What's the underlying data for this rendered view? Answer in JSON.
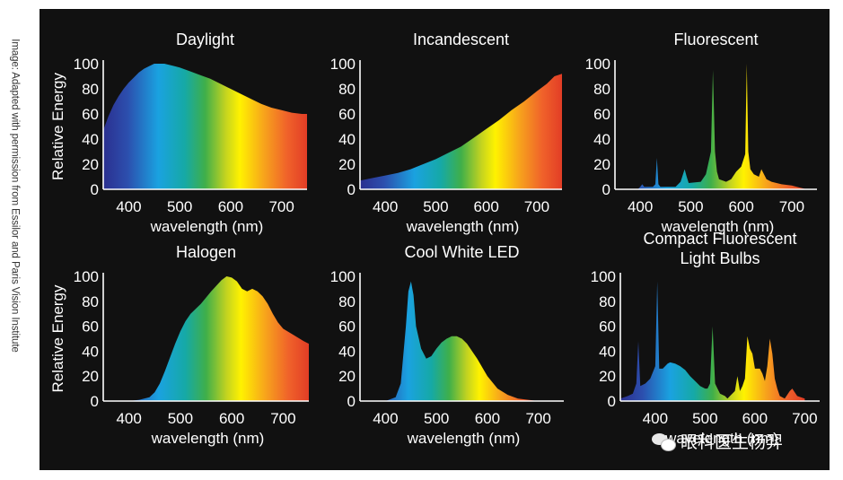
{
  "credit": "Image: Adapted with permission from Essilor and Paris Vision Institute",
  "watermark": {
    "text": "眼科医生杨羿",
    "logo_icon": "wechat-icon"
  },
  "chart_data": [
    {
      "type": "area",
      "title": [
        "Daylight"
      ],
      "xlabel": "wavelength (nm)",
      "ylabel": "Relative Energy",
      "xlim": [
        350,
        750
      ],
      "ylim": [
        0,
        100
      ],
      "xticks": [
        400,
        500,
        600,
        700
      ],
      "yticks": [
        0,
        20,
        40,
        60,
        80,
        100
      ],
      "fill": "spectrum",
      "series": [
        {
          "x": [
            350,
            360,
            370,
            380,
            390,
            400,
            410,
            420,
            430,
            440,
            450,
            460,
            470,
            480,
            490,
            500,
            520,
            540,
            560,
            580,
            600,
            620,
            640,
            660,
            680,
            700,
            720,
            740,
            750
          ],
          "y": [
            47,
            58,
            67,
            74,
            80,
            85,
            89,
            93,
            96,
            98,
            100,
            100,
            100,
            99,
            98,
            97,
            94,
            91,
            88,
            84,
            80,
            76,
            72,
            68,
            65,
            63,
            61,
            60,
            60
          ]
        }
      ]
    },
    {
      "type": "area",
      "title": [
        "Incandescent"
      ],
      "xlabel": "wavelength (nm)",
      "ylabel": "",
      "xlim": [
        350,
        750
      ],
      "ylim": [
        0,
        100
      ],
      "xticks": [
        400,
        500,
        600,
        700
      ],
      "yticks": [
        0,
        20,
        40,
        60,
        80,
        100
      ],
      "fill": "spectrum",
      "series": [
        {
          "x": [
            350,
            375,
            400,
            425,
            450,
            475,
            500,
            525,
            550,
            575,
            600,
            625,
            650,
            675,
            700,
            720,
            735,
            750
          ],
          "y": [
            7,
            9,
            11,
            13,
            16,
            20,
            24,
            29,
            34,
            41,
            48,
            55,
            63,
            70,
            78,
            84,
            90,
            92
          ]
        }
      ]
    },
    {
      "type": "area",
      "title": [
        "Fluorescent"
      ],
      "xlabel": "wavelength (nm)",
      "ylabel": "",
      "xlim": [
        350,
        750
      ],
      "ylim": [
        0,
        100
      ],
      "xticks": [
        400,
        500,
        600,
        700
      ],
      "yticks": [
        0,
        20,
        40,
        60,
        80,
        100
      ],
      "fill": "spectrum",
      "series": [
        {
          "x": [
            350,
            395,
            400,
            404,
            408,
            425,
            430,
            433,
            436,
            440,
            470,
            480,
            488,
            492,
            496,
            520,
            530,
            540,
            544,
            548,
            552,
            556,
            570,
            580,
            590,
            600,
            608,
            611,
            614,
            618,
            625,
            635,
            640,
            650,
            660,
            680,
            700,
            720,
            730
          ],
          "y": [
            0,
            0,
            2,
            4,
            2,
            2,
            4,
            25,
            4,
            2,
            2,
            6,
            16,
            10,
            5,
            6,
            12,
            30,
            95,
            30,
            14,
            8,
            6,
            8,
            14,
            18,
            28,
            100,
            30,
            16,
            12,
            10,
            16,
            8,
            6,
            4,
            3,
            1,
            0
          ]
        }
      ]
    },
    {
      "type": "area",
      "title": [
        "Halogen"
      ],
      "xlabel": "wavelength (nm)",
      "ylabel": "Relative Energy",
      "xlim": [
        350,
        750
      ],
      "ylim": [
        0,
        100
      ],
      "xticks": [
        400,
        500,
        600,
        700
      ],
      "yticks": [
        0,
        20,
        40,
        60,
        80,
        100
      ],
      "fill": "spectrum",
      "series": [
        {
          "x": [
            350,
            400,
            420,
            440,
            450,
            460,
            470,
            480,
            490,
            500,
            510,
            520,
            530,
            540,
            560,
            580,
            590,
            600,
            610,
            620,
            630,
            640,
            650,
            660,
            670,
            680,
            690,
            700,
            720,
            740,
            750
          ],
          "y": [
            0,
            0,
            1,
            3,
            7,
            14,
            24,
            35,
            46,
            56,
            64,
            70,
            74,
            78,
            88,
            97,
            100,
            99,
            96,
            90,
            88,
            90,
            88,
            84,
            78,
            70,
            63,
            58,
            53,
            48,
            46
          ]
        }
      ]
    },
    {
      "type": "area",
      "title": [
        "Cool White LED"
      ],
      "xlabel": "wavelength (nm)",
      "ylabel": "",
      "xlim": [
        350,
        750
      ],
      "ylim": [
        0,
        100
      ],
      "xticks": [
        400,
        500,
        600,
        700
      ],
      "yticks": [
        0,
        20,
        40,
        60,
        80,
        100
      ],
      "fill": "spectrum",
      "series": [
        {
          "x": [
            350,
            400,
            420,
            430,
            440,
            445,
            450,
            455,
            460,
            470,
            480,
            490,
            500,
            510,
            520,
            530,
            540,
            550,
            560,
            580,
            600,
            620,
            640,
            660,
            680,
            700
          ],
          "y": [
            0,
            0,
            3,
            14,
            60,
            88,
            96,
            85,
            60,
            42,
            34,
            36,
            42,
            47,
            50,
            52,
            52,
            50,
            46,
            34,
            20,
            10,
            5,
            2,
            1,
            0
          ]
        }
      ]
    },
    {
      "type": "area",
      "title": [
        "Compact Fluorescent",
        "Light Bulbs"
      ],
      "xlabel": "wavelength (nm)",
      "ylabel": "",
      "xlim": [
        330,
        730
      ],
      "ylim": [
        0,
        100
      ],
      "xticks": [
        400,
        500,
        600,
        700
      ],
      "yticks": [
        0,
        20,
        40,
        60,
        80,
        100
      ],
      "fill": "spectrum",
      "series": [
        {
          "x": [
            330,
            345,
            355,
            362,
            366,
            370,
            380,
            390,
            400,
            404,
            408,
            415,
            425,
            430,
            440,
            450,
            460,
            470,
            480,
            490,
            500,
            505,
            510,
            515,
            520,
            525,
            530,
            540,
            545,
            550,
            560,
            565,
            570,
            575,
            580,
            585,
            590,
            595,
            600,
            610,
            615,
            620,
            625,
            630,
            635,
            640,
            645,
            650,
            660,
            670,
            675,
            685,
            700
          ],
          "y": [
            2,
            4,
            6,
            14,
            48,
            12,
            14,
            18,
            28,
            96,
            26,
            26,
            30,
            31,
            30,
            28,
            25,
            20,
            16,
            12,
            10,
            10,
            14,
            60,
            14,
            10,
            6,
            4,
            2,
            4,
            8,
            20,
            8,
            12,
            18,
            52,
            42,
            38,
            26,
            26,
            22,
            16,
            28,
            50,
            38,
            18,
            10,
            4,
            2,
            8,
            10,
            4,
            2
          ]
        }
      ]
    }
  ]
}
